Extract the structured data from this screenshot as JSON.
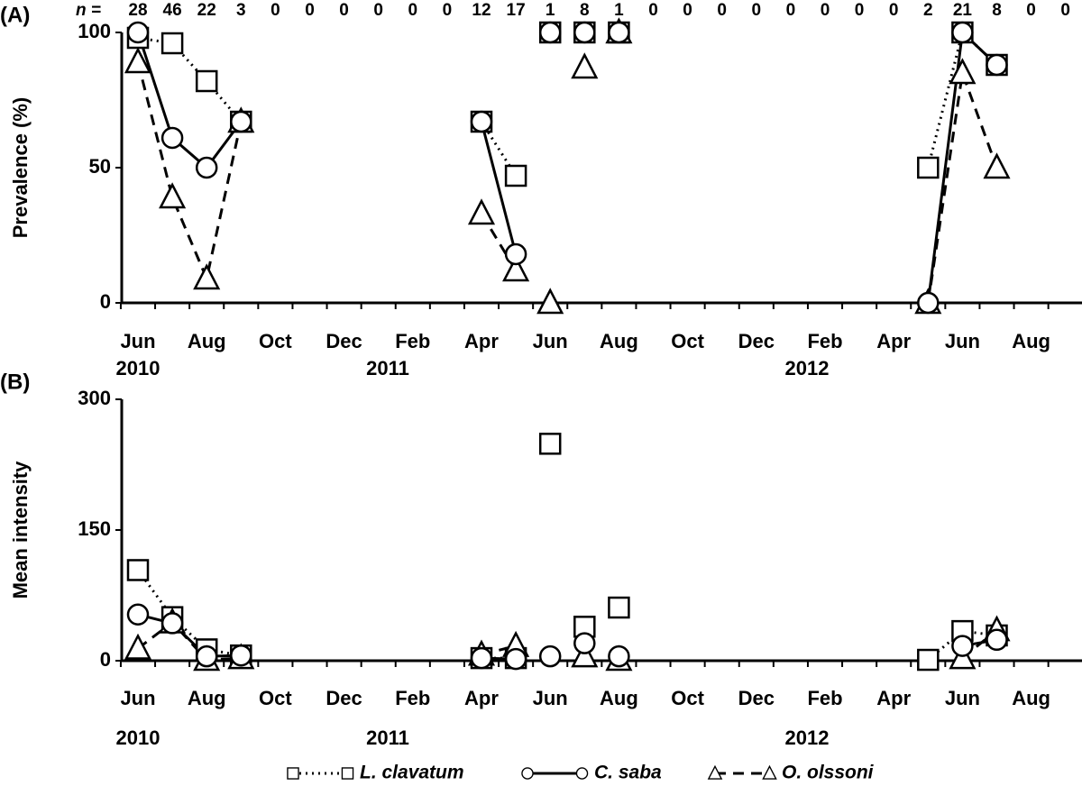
{
  "chart_data": [
    {
      "type": "line",
      "panel_label": "(A)",
      "ylabel": "Prevalence (%)",
      "n_label": "n =",
      "n_values": [
        28,
        46,
        22,
        3,
        0,
        0,
        0,
        0,
        0,
        0,
        12,
        17,
        1,
        8,
        1,
        0,
        0,
        0,
        0,
        0,
        0,
        0,
        0,
        2,
        21,
        8,
        0,
        0
      ],
      "categories": [
        "Jun",
        null,
        "Aug",
        null,
        "Oct",
        null,
        "Dec",
        null,
        "Feb",
        null,
        "Apr",
        null,
        "Jun",
        null,
        "Aug",
        null,
        "Oct",
        null,
        "Dec",
        null,
        "Feb",
        null,
        "Apr",
        null,
        "Jun",
        null,
        "Aug",
        null
      ],
      "year_labels": [
        "2010",
        "2011",
        "2012"
      ],
      "ylim": [
        0,
        100
      ],
      "yticks": [
        0,
        50,
        100
      ],
      "segments": [
        [
          0,
          3
        ],
        [
          10,
          11
        ],
        [
          23,
          25
        ]
      ],
      "series": [
        {
          "name": "L. clavatum",
          "color": "#000000",
          "marker": "square",
          "dash": "dotted",
          "values": [
            98,
            96,
            82,
            67,
            null,
            null,
            null,
            null,
            null,
            null,
            67,
            47,
            100,
            100,
            100,
            null,
            null,
            null,
            null,
            null,
            null,
            null,
            null,
            50,
            100,
            88,
            null,
            null
          ]
        },
        {
          "name": "O. olssoni",
          "color": "#000000",
          "marker": "triangle",
          "dash": "dashed",
          "values": [
            89,
            39,
            9,
            67,
            null,
            null,
            null,
            null,
            null,
            null,
            33,
            12,
            0,
            87,
            100,
            null,
            null,
            null,
            null,
            null,
            null,
            null,
            null,
            0,
            85,
            50,
            null,
            null
          ]
        },
        {
          "name": "C. saba",
          "color": "#000000",
          "marker": "circle",
          "dash": "solid",
          "values": [
            100,
            61,
            50,
            67,
            null,
            null,
            null,
            null,
            null,
            null,
            67,
            18,
            100,
            100,
            100,
            null,
            null,
            null,
            null,
            null,
            null,
            null,
            null,
            0,
            100,
            88,
            null,
            null
          ]
        }
      ]
    },
    {
      "type": "line",
      "panel_label": "(B)",
      "ylabel": "Mean intensity",
      "categories": [
        "Jun",
        null,
        "Aug",
        null,
        "Oct",
        null,
        "Dec",
        null,
        "Feb",
        null,
        "Apr",
        null,
        "Jun",
        null,
        "Aug",
        null,
        "Oct",
        null,
        "Dec",
        null,
        "Feb",
        null,
        "Apr",
        null,
        "Jun",
        null,
        "Aug",
        null
      ],
      "year_labels": [
        "2010",
        "2011",
        "2012"
      ],
      "ylim": [
        0,
        300
      ],
      "yticks": [
        0,
        150,
        300
      ],
      "segments": [
        [
          0,
          3
        ],
        [
          10,
          11
        ],
        [
          23,
          25
        ]
      ],
      "legend": "bottom",
      "series": [
        {
          "name": "L. clavatum",
          "color": "#000000",
          "marker": "square",
          "dash": "dotted",
          "values": [
            104,
            50,
            13,
            6,
            null,
            null,
            null,
            null,
            null,
            null,
            3,
            3,
            249,
            39,
            61,
            null,
            null,
            null,
            null,
            null,
            null,
            null,
            null,
            1,
            34,
            29,
            null,
            null
          ]
        },
        {
          "name": "O. olssoni",
          "color": "#000000",
          "marker": "triangle",
          "dash": "dashed",
          "values": [
            14,
            44,
            1,
            3,
            null,
            null,
            null,
            null,
            null,
            null,
            7,
            17,
            null,
            5,
            1,
            null,
            null,
            null,
            null,
            null,
            null,
            null,
            null,
            null,
            3,
            35,
            null,
            null
          ]
        },
        {
          "name": "C. saba",
          "color": "#000000",
          "marker": "circle",
          "dash": "solid",
          "values": [
            53,
            43,
            5,
            6,
            null,
            null,
            null,
            null,
            null,
            null,
            3,
            2,
            5,
            20,
            5,
            null,
            null,
            null,
            null,
            null,
            null,
            null,
            null,
            null,
            17,
            24,
            null,
            null
          ]
        }
      ]
    }
  ]
}
